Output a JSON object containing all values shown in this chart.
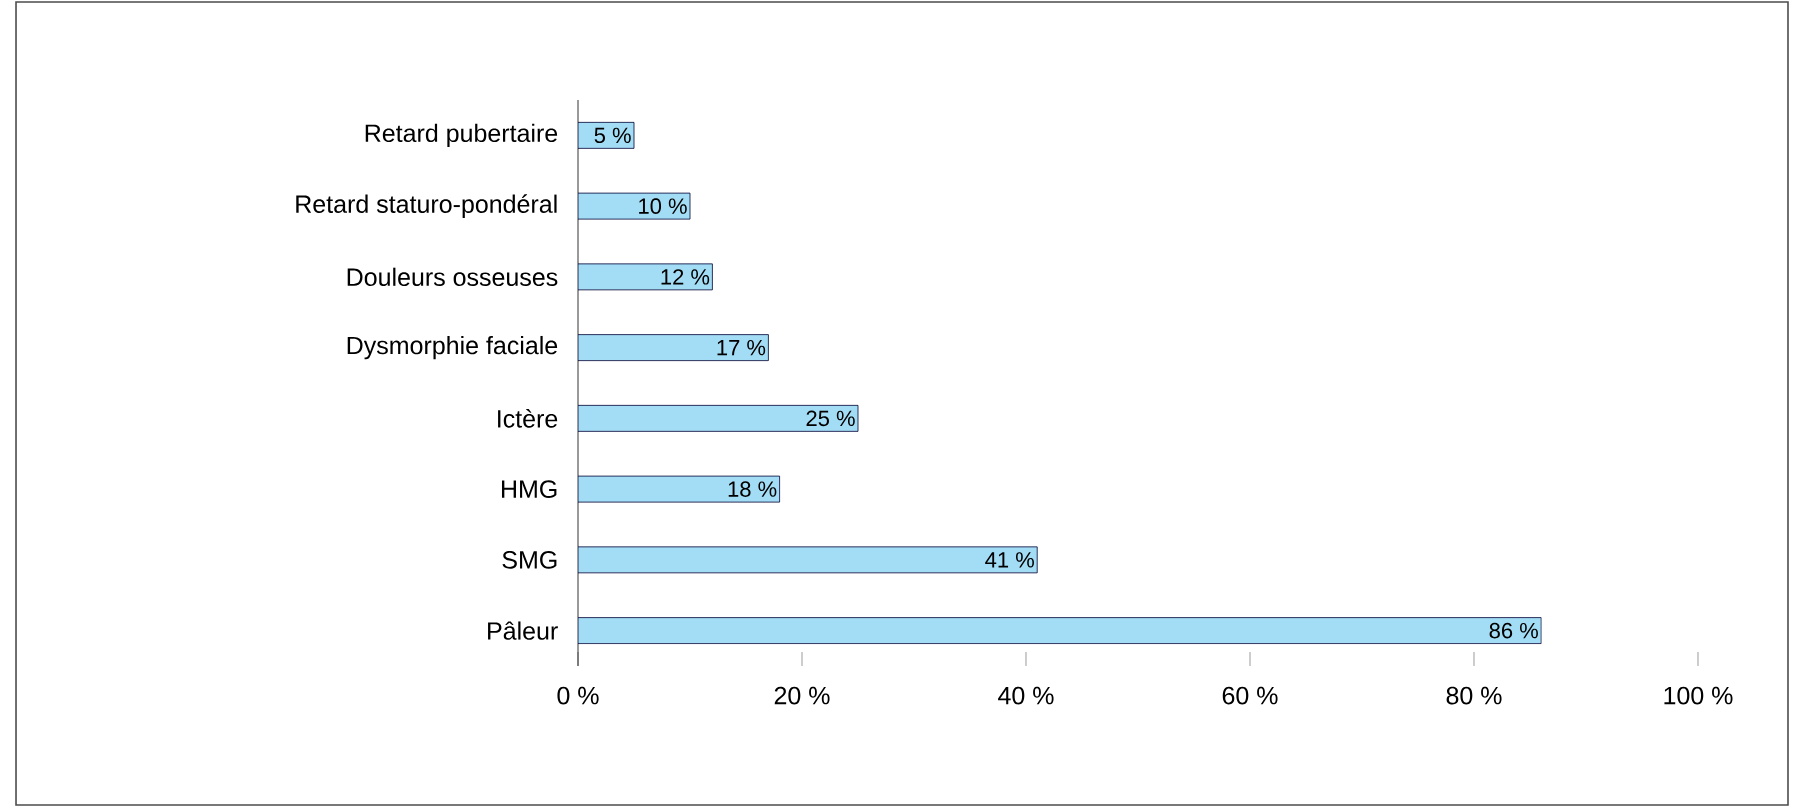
{
  "chart_data": {
    "type": "bar",
    "orientation": "horizontal",
    "color": "#a3dcf5",
    "categories": [
      "Retard pubertaire",
      "Retard staturo-pondéral",
      "Douleurs osseuses",
      "Dysmorphie faciale",
      "Ictère",
      "HMG",
      "SMG",
      "Pâleur"
    ],
    "values": [
      5,
      10,
      12,
      17,
      25,
      18,
      41,
      86
    ],
    "value_labels": [
      "5 %",
      "10 %",
      "12 %",
      "17 %",
      "25 %",
      "18 %",
      "41 %",
      "86 %"
    ],
    "xlim": [
      0,
      100
    ],
    "xticks": [
      {
        "value": 0,
        "label": "0 %"
      },
      {
        "value": 20,
        "label": "20 %"
      },
      {
        "value": 40,
        "label": "40 %"
      },
      {
        "value": 60,
        "label": "60 %"
      },
      {
        "value": 80,
        "label": "80 %"
      },
      {
        "value": 100,
        "label": "100 %"
      }
    ]
  }
}
